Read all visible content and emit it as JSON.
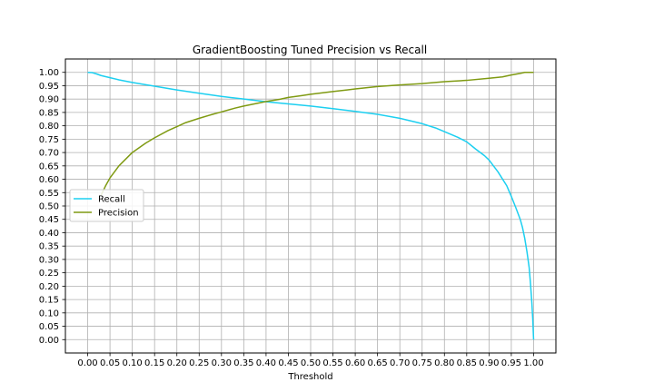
{
  "chart_data": {
    "type": "line",
    "title": "GradientBoosting Tuned Precision vs Recall",
    "xlabel": "Threshold",
    "ylabel": "",
    "xlim": [
      -0.05,
      1.05
    ],
    "ylim": [
      -0.05,
      1.05
    ],
    "xticks": [
      "0.00",
      "0.05",
      "0.10",
      "0.15",
      "0.20",
      "0.25",
      "0.30",
      "0.35",
      "0.40",
      "0.45",
      "0.50",
      "0.55",
      "0.60",
      "0.65",
      "0.70",
      "0.75",
      "0.80",
      "0.85",
      "0.90",
      "0.95",
      "1.00"
    ],
    "yticks": [
      "0.00",
      "0.05",
      "0.10",
      "0.15",
      "0.20",
      "0.25",
      "0.30",
      "0.35",
      "0.40",
      "0.45",
      "0.50",
      "0.55",
      "0.60",
      "0.65",
      "0.70",
      "0.75",
      "0.80",
      "0.85",
      "0.90",
      "0.95",
      "1.00"
    ],
    "grid": true,
    "legend": "center-left",
    "series": [
      {
        "name": "Recall",
        "color": "#1ccff0",
        "x": [
          0.0,
          0.01,
          0.02,
          0.03,
          0.05,
          0.07,
          0.1,
          0.15,
          0.2,
          0.25,
          0.3,
          0.35,
          0.4,
          0.45,
          0.5,
          0.55,
          0.6,
          0.65,
          0.7,
          0.75,
          0.78,
          0.8,
          0.83,
          0.85,
          0.87,
          0.89,
          0.9,
          0.92,
          0.94,
          0.95,
          0.96,
          0.97,
          0.975,
          0.98,
          0.985,
          0.99,
          0.993,
          0.996,
          0.998,
          1.0
        ],
        "y": [
          1.0,
          0.999,
          0.994,
          0.988,
          0.98,
          0.972,
          0.962,
          0.948,
          0.934,
          0.922,
          0.91,
          0.9,
          0.89,
          0.882,
          0.874,
          0.864,
          0.854,
          0.843,
          0.828,
          0.808,
          0.792,
          0.778,
          0.757,
          0.74,
          0.713,
          0.688,
          0.672,
          0.628,
          0.575,
          0.536,
          0.494,
          0.45,
          0.42,
          0.38,
          0.33,
          0.27,
          0.21,
          0.14,
          0.08,
          0.0
        ]
      },
      {
        "name": "Precision",
        "color": "#7f9a12",
        "x": [
          0.03,
          0.04,
          0.05,
          0.07,
          0.1,
          0.13,
          0.15,
          0.18,
          0.2,
          0.22,
          0.25,
          0.28,
          0.3,
          0.33,
          0.35,
          0.38,
          0.4,
          0.43,
          0.45,
          0.48,
          0.5,
          0.55,
          0.6,
          0.65,
          0.7,
          0.75,
          0.8,
          0.85,
          0.9,
          0.93,
          0.95,
          0.97,
          0.98,
          1.0
        ],
        "y": [
          0.54,
          0.575,
          0.605,
          0.65,
          0.7,
          0.735,
          0.755,
          0.782,
          0.797,
          0.812,
          0.828,
          0.843,
          0.852,
          0.866,
          0.874,
          0.884,
          0.891,
          0.899,
          0.906,
          0.913,
          0.918,
          0.928,
          0.938,
          0.947,
          0.953,
          0.958,
          0.965,
          0.97,
          0.978,
          0.983,
          0.99,
          0.996,
          1.0,
          1.0
        ]
      }
    ]
  }
}
